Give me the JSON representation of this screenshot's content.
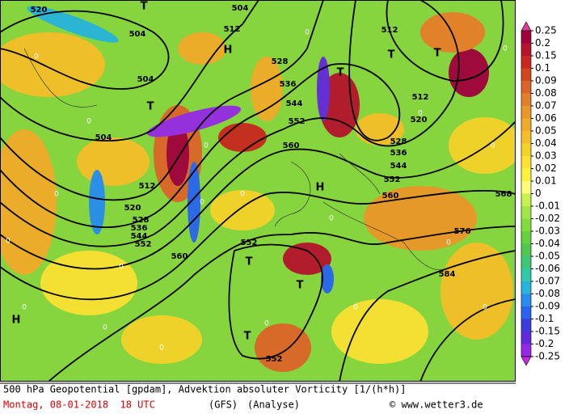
{
  "map": {
    "contour_labels": [
      "520",
      "504",
      "504",
      "504",
      "512",
      "504",
      "512",
      "528",
      "536",
      "544",
      "552",
      "560",
      "552",
      "520",
      "528",
      "536",
      "544",
      "552",
      "560",
      "512",
      "512",
      "520",
      "528",
      "536",
      "544",
      "552",
      "560",
      "568",
      "576",
      "584",
      "552"
    ],
    "pressure_labels": [
      "T",
      "H",
      "T",
      "T",
      "T",
      "T",
      "H",
      "T",
      "T",
      "T",
      "H"
    ],
    "zero_labels": [
      "0",
      "0",
      "0",
      "0",
      "0",
      "0",
      "0",
      "0",
      "0",
      "0",
      "0",
      "0",
      "0",
      "0",
      "0",
      "0",
      "0",
      "0",
      "0",
      "0"
    ]
  },
  "colorbar": {
    "levels": [
      0.25,
      0.2,
      0.15,
      0.1,
      0.09,
      0.08,
      0.07,
      0.06,
      0.05,
      0.04,
      0.03,
      0.02,
      0.01,
      0,
      -0.01,
      -0.02,
      -0.03,
      -0.04,
      -0.05,
      -0.06,
      -0.07,
      -0.08,
      -0.09,
      -0.1,
      -0.15,
      -0.2,
      -0.25
    ],
    "colors": [
      "#e03c96",
      "#a0003c",
      "#b4142d",
      "#c8281e",
      "#d2461e",
      "#dc6428",
      "#e67d28",
      "#eb9628",
      "#f0aa28",
      "#f5be28",
      "#f5d228",
      "#fae132",
      "#fff03c",
      "#fffa78",
      "#c8f050",
      "#a0e646",
      "#82dc3c",
      "#64d23c",
      "#50c850",
      "#3cc878",
      "#32c8aa",
      "#28b4dc",
      "#288cf0",
      "#2864f0",
      "#3c3cdc",
      "#6428dc",
      "#9628e6",
      "#c828e6"
    ]
  },
  "footer": {
    "title": "500 hPa Geopotential [gpdam], Advektion absoluter Vorticity [1/(h*h)]",
    "date": "Montag, 08-01-2018  18 UTC",
    "model": "(GFS)",
    "run": "(Analyse)",
    "copyright": "© www.wetter3.de"
  }
}
